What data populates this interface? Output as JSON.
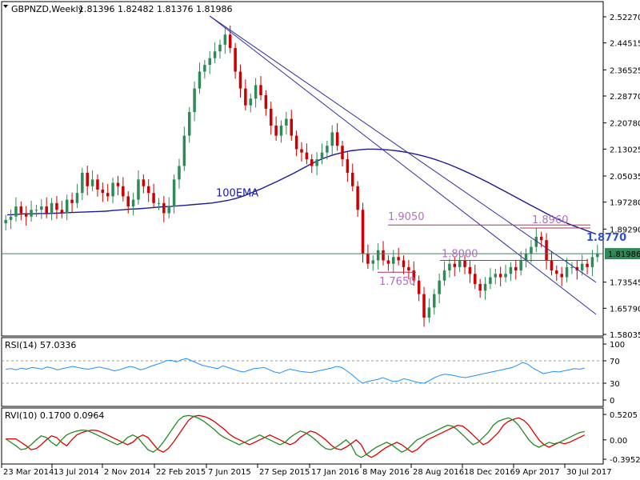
{
  "symbol_header": {
    "title": "GBPNZD,Weekly",
    "ohlc": "1.81396 1.82482 1.81376 1.81986"
  },
  "colors": {
    "bull": "#2e8b57",
    "bear": "#cc0000",
    "ema": "#1a1a99",
    "trend": "#3030a0",
    "hline": "#b03060",
    "green_line": "#2e8b57",
    "annotation": "#b070c0",
    "annotation_blue": "#3050d0",
    "rsi": "#1e90ff",
    "rvi_main": "#228b22",
    "rvi_signal": "#dd0000",
    "price_tag_bg": "#2e8b57"
  },
  "chart_data": [
    {
      "type": "candlestick",
      "panel": "price",
      "title": "GBPNZD,Weekly",
      "ylim": [
        1.58035,
        2.55
      ],
      "price_tick_labels": [
        "2.52270",
        "2.44515",
        "2.36525",
        "2.28770",
        "2.20780",
        "2.13025",
        "2.05035",
        "1.97280",
        "1.89290",
        "1.81986",
        "1.73545",
        "1.65790",
        "1.58035"
      ],
      "price_tick_values": [
        2.5227,
        2.44515,
        2.36525,
        2.2877,
        2.2078,
        2.13025,
        2.05035,
        1.9728,
        1.8929,
        1.81986,
        1.73545,
        1.6579,
        1.58035
      ],
      "current_price": "1.81986",
      "x_labels": [
        "23 Mar 2014",
        "13 Jul 2014",
        "2 Nov 2014",
        "22 Feb 2015",
        "7 Jun 2015",
        "27 Sep 2015",
        "17 Jan 2016",
        "8 May 2016",
        "28 Aug 2016",
        "18 Dec 2016",
        "9 Apr 2017",
        "30 Jul 2017"
      ],
      "ohlc": {
        "first": {
          "date": "23 Mar 2014",
          "approx_close": 1.93
        },
        "peak": {
          "date": "Jul 2015",
          "approx_high": 2.52
        },
        "low": {
          "date": "Oct 2016",
          "approx_low": 1.59
        },
        "last": {
          "open": 1.81396,
          "high": 1.82482,
          "low": 1.81376,
          "close": 1.81986
        }
      },
      "price_path": [
        1.92,
        1.93,
        1.96,
        1.94,
        1.93,
        1.95,
        1.95,
        1.96,
        1.94,
        1.97,
        1.95,
        1.94,
        1.98,
        1.97,
        2.0,
        2.06,
        2.02,
        2.04,
        2.01,
        2.0,
        1.99,
        2.03,
        2.02,
        1.99,
        1.96,
        1.98,
        2.04,
        2.02,
        2.0,
        1.97,
        1.97,
        1.94,
        1.96,
        2.04,
        2.08,
        2.17,
        2.24,
        2.31,
        2.36,
        2.38,
        2.4,
        2.42,
        2.44,
        2.47,
        2.43,
        2.36,
        2.31,
        2.26,
        2.28,
        2.32,
        2.29,
        2.25,
        2.2,
        2.17,
        2.2,
        2.22,
        2.17,
        2.13,
        2.12,
        2.1,
        2.08,
        2.1,
        2.12,
        2.14,
        2.18,
        2.14,
        2.1,
        2.06,
        2.02,
        1.95,
        1.82,
        1.79,
        1.8,
        1.83,
        1.8,
        1.79,
        1.81,
        1.8,
        1.78,
        1.77,
        1.74,
        1.7,
        1.63,
        1.66,
        1.7,
        1.74,
        1.77,
        1.79,
        1.78,
        1.8,
        1.78,
        1.76,
        1.73,
        1.71,
        1.73,
        1.75,
        1.76,
        1.75,
        1.76,
        1.78,
        1.77,
        1.8,
        1.82,
        1.84,
        1.87,
        1.86,
        1.8,
        1.77,
        1.76,
        1.75,
        1.78,
        1.78,
        1.77,
        1.79,
        1.78,
        1.81,
        1.82
      ],
      "ema_100_label": "100EMA",
      "ema_100": [
        1.935,
        1.936,
        1.938,
        1.938,
        1.939,
        1.939,
        1.94,
        1.941,
        1.942,
        1.943,
        1.944,
        1.945,
        1.946,
        1.948,
        1.95,
        1.952,
        1.953,
        1.955,
        1.957,
        1.959,
        1.96,
        1.962,
        1.964,
        1.966,
        1.968,
        1.97,
        1.974,
        1.978,
        1.984,
        1.992,
        2.002,
        2.012,
        2.023,
        2.034,
        2.046,
        2.058,
        2.071,
        2.084,
        2.096,
        2.106,
        2.114,
        2.12,
        2.125,
        2.128,
        2.13,
        2.13,
        2.129,
        2.127,
        2.124,
        2.12,
        2.115,
        2.109,
        2.102,
        2.094,
        2.085,
        2.075,
        2.064,
        2.053,
        2.041,
        2.029,
        2.016,
        2.003,
        1.99,
        1.977,
        1.964,
        1.951,
        1.938,
        1.926,
        1.915,
        1.905,
        1.896,
        1.887,
        1.878
      ],
      "support_resistance": [
        {
          "label": "1.9050",
          "price": 1.905
        },
        {
          "label": "1.8960",
          "price": 1.896
        },
        {
          "label": "1.8770",
          "price": 1.877
        },
        {
          "label": "1.8000",
          "price": 1.8
        },
        {
          "label": "1.7650",
          "price": 1.765
        }
      ]
    },
    {
      "type": "line",
      "panel": "rsi",
      "label": "RSI(14) 57.0336",
      "value": 57.0336,
      "ylim": [
        0,
        100
      ],
      "tick_labels": [
        "100",
        "70",
        "30",
        "0"
      ],
      "levels": [
        70,
        30
      ],
      "values": [
        55,
        56,
        54,
        57,
        55,
        58,
        57,
        55,
        59,
        57,
        54,
        56,
        58,
        60,
        58,
        56,
        55,
        57,
        59,
        57,
        55,
        52,
        54,
        57,
        60,
        58,
        54,
        56,
        60,
        63,
        66,
        70,
        71,
        68,
        72,
        74,
        70,
        66,
        62,
        60,
        58,
        56,
        61,
        58,
        55,
        52,
        50,
        53,
        56,
        57,
        58,
        54,
        50,
        48,
        52,
        55,
        53,
        51,
        50,
        49,
        51,
        53,
        55,
        57,
        60,
        58,
        52,
        45,
        37,
        30,
        33,
        35,
        37,
        40,
        36,
        33,
        34,
        38,
        36,
        33,
        31,
        30,
        35,
        40,
        44,
        46,
        45,
        43,
        41,
        40,
        42,
        44,
        46,
        48,
        50,
        52,
        54,
        56,
        58,
        62,
        67,
        64,
        57,
        52,
        47,
        49,
        51,
        50,
        52,
        54,
        56,
        55,
        57
      ]
    },
    {
      "type": "line",
      "panel": "rvi",
      "label": "RVI(10) 0.1700 0.0964",
      "main_value": 0.17,
      "signal_value": 0.0964,
      "ylim": [
        -0.3952,
        0.5205
      ],
      "tick_labels": [
        "0.5205",
        "0.00",
        "-0.3952"
      ],
      "main": [
        0.02,
        -0.05,
        -0.12,
        -0.2,
        -0.18,
        -0.1,
        0.0,
        0.08,
        0.05,
        -0.05,
        -0.12,
        0.0,
        0.1,
        0.15,
        0.18,
        0.2,
        0.19,
        0.15,
        0.1,
        0.05,
        0.0,
        -0.05,
        -0.1,
        -0.05,
        0.05,
        0.1,
        0.05,
        -0.08,
        -0.2,
        -0.25,
        -0.18,
        -0.05,
        0.1,
        0.25,
        0.4,
        0.48,
        0.5,
        0.48,
        0.44,
        0.38,
        0.3,
        0.22,
        0.12,
        0.05,
        0.0,
        -0.05,
        -0.1,
        -0.05,
        0.0,
        0.05,
        0.1,
        0.05,
        0.0,
        -0.05,
        -0.1,
        -0.05,
        0.05,
        0.12,
        0.18,
        0.15,
        0.08,
        0.0,
        -0.1,
        -0.18,
        -0.2,
        -0.15,
        -0.08,
        0.0,
        -0.1,
        -0.3,
        -0.36,
        -0.3,
        -0.22,
        -0.15,
        -0.1,
        -0.05,
        -0.1,
        -0.18,
        -0.25,
        -0.2,
        -0.1,
        0.0,
        0.05,
        0.1,
        0.15,
        0.2,
        0.25,
        0.3,
        0.28,
        0.2,
        0.1,
        0.0,
        -0.1,
        -0.05,
        0.05,
        0.15,
        0.3,
        0.38,
        0.42,
        0.45,
        0.4,
        0.3,
        0.15,
        0.0,
        -0.1,
        -0.15,
        -0.1,
        -0.05,
        -0.08,
        -0.05,
        0.0,
        0.05,
        0.1,
        0.15,
        0.17
      ],
      "signal_lag": 2
    }
  ]
}
